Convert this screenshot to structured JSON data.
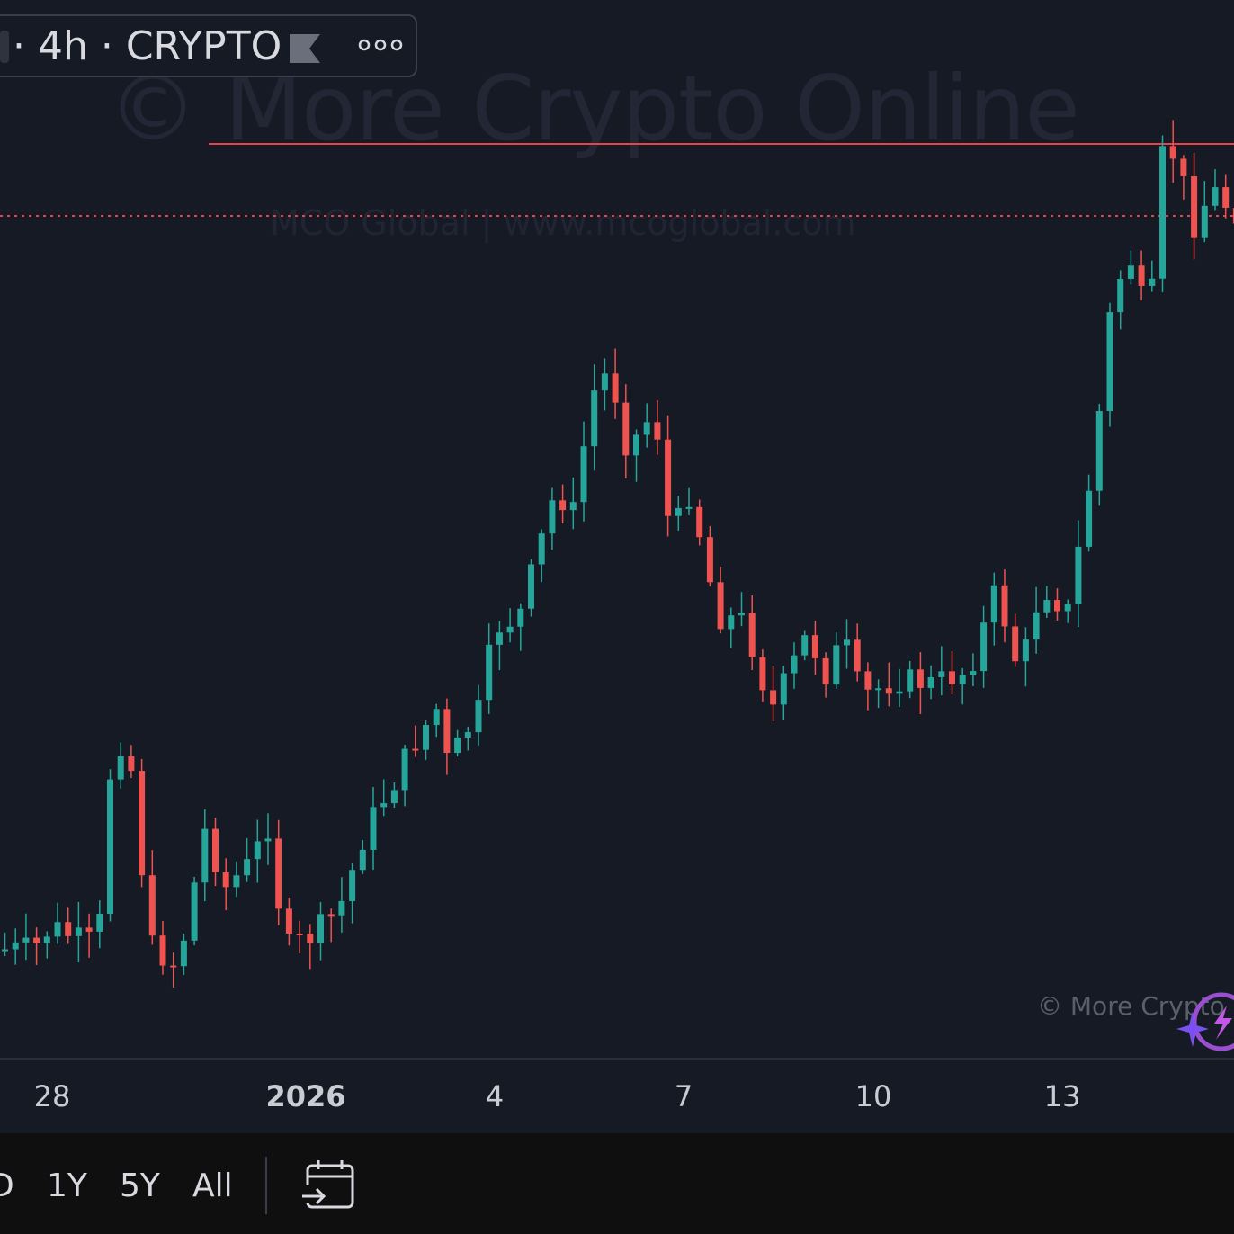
{
  "legend": {
    "symbol": "· 4h · CRYPTO",
    "flag_icon": "flag-icon",
    "more_icon": "more-dots-icon"
  },
  "watermark": {
    "main": "© More Crypto Online",
    "sub": "MCO Global   |   www.mcoglobal.com",
    "bottom": "© More Crypto"
  },
  "colors": {
    "background": "#161a25",
    "up": "#26a69a",
    "down": "#ef5350",
    "resistance_line": "#e8434b"
  },
  "x_axis": {
    "labels": [
      "28",
      "2026",
      "4",
      "7",
      "10",
      "13"
    ]
  },
  "time_ranges": [
    "D",
    "1Y",
    "5Y",
    "All"
  ],
  "icons": {
    "date_range": "calendar-goto-icon",
    "logo": "lightning-logo-icon"
  },
  "chart_data": {
    "type": "candlestick",
    "timeframe": "4h",
    "x_ticks": [
      "28",
      "2026",
      "4",
      "7",
      "10",
      "13"
    ],
    "horizontal_lines": [
      {
        "style": "solid",
        "color": "#e8434b",
        "level": "upper"
      },
      {
        "style": "dotted",
        "color": "#e8434b",
        "level": "lower"
      }
    ]
  }
}
